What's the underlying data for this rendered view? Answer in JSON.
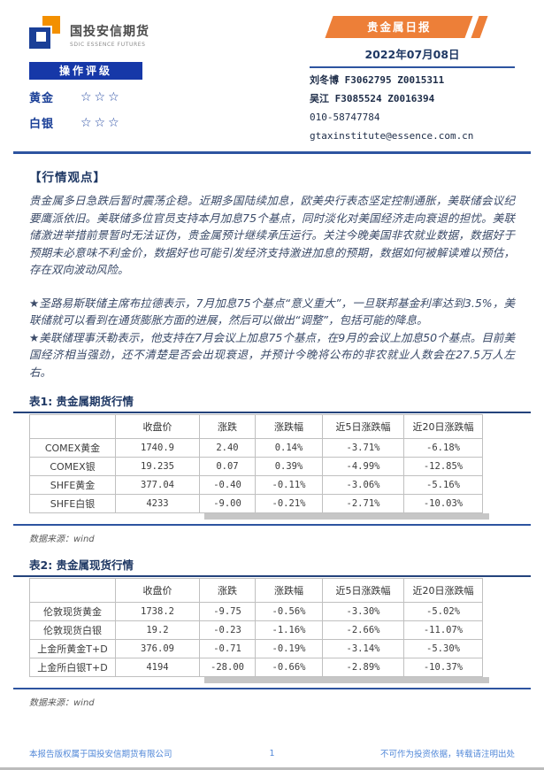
{
  "header": {
    "company_name": "国投安信期货",
    "company_subtitle": "SDIC ESSENCE FUTURES",
    "rating_bar_label": "操作评级",
    "ratings": [
      {
        "asset": "黄金",
        "stars": "☆☆☆"
      },
      {
        "asset": "白银",
        "stars": "☆☆☆"
      }
    ],
    "report_badge": "贵金属日报",
    "report_date": "2022年07月08日",
    "analysts": [
      "刘冬博 F3062795 Z0015311",
      "吴江 F3085524 Z0016394"
    ],
    "phone": "010-58747784",
    "email": "gtaxinstitute@essence.com.cn"
  },
  "market_view": {
    "heading": "【行情观点】",
    "paragraph": "贵金属多日急跌后暂时震荡企稳。近期多国陆续加息，欧美央行表态坚定控制通胀，美联储会议纪要鹰派依旧。美联储多位官员支持本月加息75个基点，同时淡化对美国经济走向衰退的担忧。美联储激进举措前景暂时无法证伪，贵金属预计继续承压运行。关注今晚美国非农就业数据，数据好于预期未必意味不利金价，数据好也可能引发经济支持激进加息的预期，数据如何被解读难以预估，存在双向波动风险。",
    "bullets": [
      "★圣路易斯联储主席布拉德表示，7月加息75个基点“意义重大”，一旦联邦基金利率达到3.5%，美联储就可以看到在通货膨胀方面的进展，然后可以做出“调整”，包括可能的降息。",
      "★美联储理事沃勒表示，他支持在7月会议上加息75个基点，在9月的会议上加息50个基点。目前美国经济相当强劲，还不清楚是否会出现衰退，并预计今晚将公布的非农就业人数会在27.5万人左右。"
    ]
  },
  "table1": {
    "title": "表1: 贵金属期货行情",
    "headers": [
      "",
      "收盘价",
      "涨跌",
      "涨跌幅",
      "近5日涨跌幅",
      "近20日涨跌幅"
    ],
    "rows": [
      [
        "COMEX黄金",
        "1740.9",
        "2.40",
        "0.14%",
        "-3.71%",
        "-6.18%"
      ],
      [
        "COMEX银",
        "19.235",
        "0.07",
        "0.39%",
        "-4.99%",
        "-12.85%"
      ],
      [
        "SHFE黄金",
        "377.04",
        "-0.40",
        "-0.11%",
        "-3.06%",
        "-5.16%"
      ],
      [
        "SHFE白银",
        "4233",
        "-9.00",
        "-0.21%",
        "-2.71%",
        "-10.03%"
      ]
    ],
    "source": "数据来源：wind"
  },
  "table2": {
    "title": "表2: 贵金属现货行情",
    "headers": [
      "",
      "收盘价",
      "涨跌",
      "涨跌幅",
      "近5日涨跌幅",
      "近20日涨跌幅"
    ],
    "rows": [
      [
        "伦敦现货黄金",
        "1738.2",
        "-9.75",
        "-0.56%",
        "-3.30%",
        "-5.02%"
      ],
      [
        "伦敦现货白银",
        "19.2",
        "-0.23",
        "-1.16%",
        "-2.66%",
        "-11.07%"
      ],
      [
        "上金所黄金T+D",
        "376.09",
        "-0.71",
        "-0.19%",
        "-3.14%",
        "-5.30%"
      ],
      [
        "上金所白银T+D",
        "4194",
        "-28.00",
        "-0.66%",
        "-2.89%",
        "-10.37%"
      ]
    ],
    "source": "数据来源：wind"
  },
  "footer": {
    "left": "本报告版权属于国投安信期货有限公司",
    "page_number": "1",
    "right": "不可作为投资依据，转载请注明出处"
  },
  "colors": {
    "navy": "#1f3864",
    "royal_blue": "#1638a8",
    "banner_orange": "#ed7f38",
    "logo_orange": "#f39000",
    "separator_blue": "#2d54a0",
    "footer_blue": "#5288d8"
  }
}
